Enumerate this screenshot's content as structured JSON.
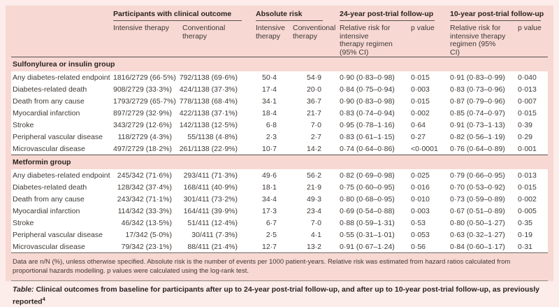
{
  "colors": {
    "page_bg": "#fcecea",
    "card_bg": "#f8d8d3",
    "row_bg": "#ffffff",
    "rule_dark": "#55504b",
    "rule_mid": "#8d8680",
    "text": "#3e3834",
    "text_strong": "#282320"
  },
  "table": {
    "column_groups": [
      {
        "label": "",
        "span": 1
      },
      {
        "label": "Participants with clinical outcome",
        "span": 2
      },
      {
        "label": "Absolute risk",
        "span": 2
      },
      {
        "label": "24-year post-trial follow-up",
        "span": 2
      },
      {
        "label": "10-year post-trial follow-up",
        "span": 2
      }
    ],
    "sub_headers": [
      "",
      "Intensive therapy",
      "Conventional therapy",
      "Intensive therapy",
      "Conventional therapy",
      "Relative risk for intensive therapy regimen (95% CI)",
      "p value",
      "Relative risk for intensive therapy regimen (95% CI)",
      "p value"
    ],
    "groups": [
      {
        "label": "Sulfonylurea or insulin group",
        "rows": [
          {
            "outcome": "Any diabetes-related endpoint",
            "cells": [
              "1816/2729 (66·5%)",
              "792/1138 (69·6%)",
              "50·4",
              "54·9",
              "0·90 (0·83–0·98)",
              "0·015",
              "0·91 (0·83–0·99)",
              "0·040"
            ]
          },
          {
            "outcome": "Diabetes-related death",
            "cells": [
              "908/2729 (33·3%)",
              "424/1138 (37·3%)",
              "17·4",
              "20·0",
              "0·84 (0·75–0·94)",
              "0·003",
              "0·83 (0·73–0·96)",
              "0·013"
            ]
          },
          {
            "outcome": "Death from any cause",
            "cells": [
              "1793/2729 (65·7%)",
              "778/1138 (68·4%)",
              "34·1",
              "36·7",
              "0·90 (0·83–0·98)",
              "0·015",
              "0·87 (0·79–0·96)",
              "0·007"
            ]
          },
          {
            "outcome": "Myocardial infarction",
            "cells": [
              "897/2729 (32·9%)",
              "422/1138 (37·1%)",
              "18·4",
              "21·7",
              "0·83 (0·74–0·94)",
              "0·002",
              "0·85 (0·74–0·97)",
              "0·015"
            ]
          },
          {
            "outcome": "Stroke",
            "cells": [
              "343/2729 (12·6%)",
              "142/1138 (12·5%)",
              "6·8",
              "7·0",
              "0·95 (0·78–1·16)",
              "0·64",
              "0·91 (0·73–1·13)",
              "0·39"
            ]
          },
          {
            "outcome": "Peripheral vascular disease",
            "cells": [
              "118/2729 (4·3%)",
              "55/1138 (4·8%)",
              "2·3",
              "2·7",
              "0·83 (0·61–1·15)",
              "0·27",
              "0·82 (0·56–1·19)",
              "0·29"
            ]
          },
          {
            "outcome": "Microvascular disease",
            "cells": [
              "497/2729 (18·2%)",
              "261/1138 (22·9%)",
              "10·7",
              "14·2",
              "0·74 (0·64–0·86)",
              "<0·0001",
              "0·76 (0·64–0·89)",
              "0·001"
            ]
          }
        ]
      },
      {
        "label": "Metformin group",
        "rows": [
          {
            "outcome": "Any diabetes-related endpoint",
            "cells": [
              "245/342 (71·6%)",
              "293/411 (71·3%)",
              "49·6",
              "56·2",
              "0·82 (0·69–0·98)",
              "0·025",
              "0·79 (0·66–0·95)",
              "0·013"
            ]
          },
          {
            "outcome": "Diabetes-related death",
            "cells": [
              "128/342 (37·4%)",
              "168/411 (40·9%)",
              "18·1",
              "21·9",
              "0·75 (0·60–0·95)",
              "0·016",
              "0·70 (0·53–0·92)",
              "0·015"
            ]
          },
          {
            "outcome": "Death from any cause",
            "cells": [
              "243/342 (71·1%)",
              "301/411 (73·2%)",
              "34·4",
              "49·3",
              "0·80 (0·68–0·95)",
              "0·010",
              "0·73 (0·59–0·89)",
              "0·002"
            ]
          },
          {
            "outcome": "Myocardial infarction",
            "cells": [
              "114/342 (33·3%)",
              "164/411 (39·9%)",
              "17·3",
              "23·4",
              "0·69 (0·54–0·88)",
              "0·003",
              "0·67 (0·51–0·89)",
              "0·005"
            ]
          },
          {
            "outcome": "Stroke",
            "cells": [
              "46/342 (13·5%)",
              "51/411 (12·4%)",
              "6·7",
              "7·0",
              "0·88 (0·59–1·31)",
              "0·53",
              "0·80 (0·50–1·27)",
              "0·35"
            ]
          },
          {
            "outcome": "Peripheral vascular disease",
            "cells": [
              "17/342 (5·0%)",
              "30/411 (7·3%)",
              "2·5",
              "4·1",
              "0·55 (0·31–1·01)",
              "0·053",
              "0·63 (0·32–1·27)",
              "0·19"
            ]
          },
          {
            "outcome": "Microvascular disease",
            "cells": [
              "79/342 (23·1%)",
              "88/411 (21·4%)",
              "12·7",
              "13·2",
              "0·91 (0·67–1·24)",
              "0·56",
              "0·84 (0·60–1·17)",
              "0·31"
            ]
          }
        ]
      }
    ],
    "footnote": "Data are n/N (%), unless otherwise specified. Absolute risk is the number of events per 1000 patient-years. Relative risk was estimated from hazard ratios calculated from proportional hazards modelling. p values were calculated using the log-rank test.",
    "caption_prefix": "Table:",
    "caption_text": " Clinical outcomes from baseline for participants after up to 24-year post-trial follow-up, and after up to 10-year post-trial follow-up, as previously reported",
    "caption_ref": "4"
  }
}
